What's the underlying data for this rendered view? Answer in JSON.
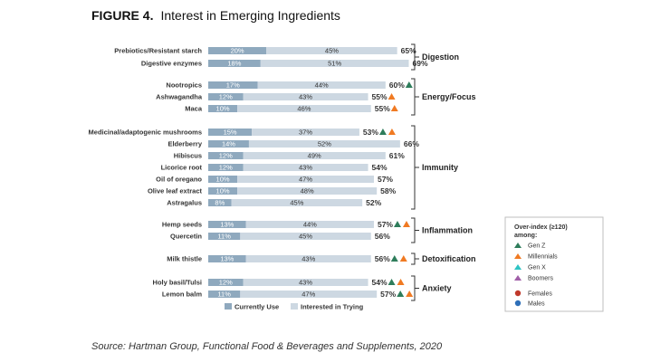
{
  "figure_label": "FIGURE 4.",
  "figure_title": "Interest in Emerging Ingredients",
  "source": "Source: Hartman Group, Functional Food & Beverages and Supplements, 2020",
  "colors": {
    "currently_use": "#8fa9be",
    "interested": "#cdd8e2",
    "gen_z": "#2e7d5b",
    "millennials": "#f07a22",
    "gen_x": "#2ec4c4",
    "boomers": "#a05fa8",
    "females": "#c0392b",
    "males": "#2e6fb8"
  },
  "overindex_box": {
    "title_line1": "Over-index (≥120)",
    "title_line2": "among:",
    "items": [
      {
        "label": "Gen Z",
        "key": "gen_z",
        "icon": "triangle-icon"
      },
      {
        "label": "Millennials",
        "key": "millennials",
        "icon": "triangle-icon"
      },
      {
        "label": "Gen X",
        "key": "gen_x",
        "icon": "triangle-icon"
      },
      {
        "label": "Boomers",
        "key": "boomers",
        "icon": "triangle-icon"
      },
      {
        "label": "Females",
        "key": "females",
        "icon": "circle-icon"
      },
      {
        "label": "Males",
        "key": "males",
        "icon": "circle-icon"
      }
    ]
  },
  "chart_data": {
    "type": "bar",
    "orientation": "horizontal",
    "stacked": true,
    "categories": [
      "Prebiotics/Resistant starch",
      "Digestive enzymes",
      "Nootropics",
      "Ashwagandha",
      "Maca",
      "Medicinal/adaptogenic mushrooms",
      "Elderberry",
      "Hibiscus",
      "Licorice root",
      "Oil of oregano",
      "Olive leaf extract",
      "Astragalus",
      "Hemp seeds",
      "Quercetin",
      "Milk thistle",
      "Holy basil/Tulsi",
      "Lemon balm"
    ],
    "series": [
      {
        "name": "Currently Use",
        "values": [
          20,
          18,
          17,
          12,
          10,
          15,
          14,
          12,
          12,
          10,
          10,
          8,
          13,
          11,
          13,
          12,
          11
        ]
      },
      {
        "name": "Interested in Trying",
        "values": [
          45,
          51,
          44,
          43,
          46,
          37,
          52,
          49,
          43,
          47,
          48,
          45,
          44,
          45,
          43,
          43,
          47
        ]
      }
    ],
    "bar_labels_current": [
      "20%",
      "18%",
      "17%",
      "12%",
      "10%",
      "15%",
      "14%",
      "12%",
      "12%",
      "10%",
      "10%",
      "8%",
      "13%",
      "11%",
      "13%",
      "12%",
      "11%"
    ],
    "bar_labels_interested": [
      "45%",
      "51%",
      "44%",
      "43%",
      "46%",
      "37%",
      "52%",
      "49%",
      "43%",
      "47%",
      "48%",
      "45%",
      "44%",
      "45%",
      "43%",
      "43%",
      "47%"
    ],
    "totals": [
      "65%",
      "69%",
      "60%",
      "55%",
      "55%",
      "53%",
      "66%",
      "61%",
      "54%",
      "57%",
      "58%",
      "52%",
      "57%",
      "56%",
      "56%",
      "54%",
      "57%"
    ],
    "overindex": [
      [],
      [],
      [
        "gen_z"
      ],
      [
        "millennials"
      ],
      [
        "millennials"
      ],
      [
        "gen_z",
        "millennials"
      ],
      [],
      [],
      [],
      [],
      [],
      [],
      [
        "gen_z",
        "millennials"
      ],
      [],
      [
        "gen_z",
        "millennials"
      ],
      [
        "gen_z",
        "millennials"
      ],
      [
        "gen_z",
        "millennials"
      ]
    ],
    "groups": [
      {
        "name": "Digestion",
        "first": 0,
        "last": 1
      },
      {
        "name": "Energy/Focus",
        "first": 2,
        "last": 4
      },
      {
        "name": "Immunity",
        "first": 5,
        "last": 11
      },
      {
        "name": "Inflammation",
        "first": 12,
        "last": 13
      },
      {
        "name": "Detoxification",
        "first": 14,
        "last": 14
      },
      {
        "name": "Anxiety",
        "first": 15,
        "last": 16
      }
    ],
    "legend": [
      "Currently Use",
      "Interested in Trying"
    ],
    "legend_position": "bottom",
    "grid": false
  }
}
